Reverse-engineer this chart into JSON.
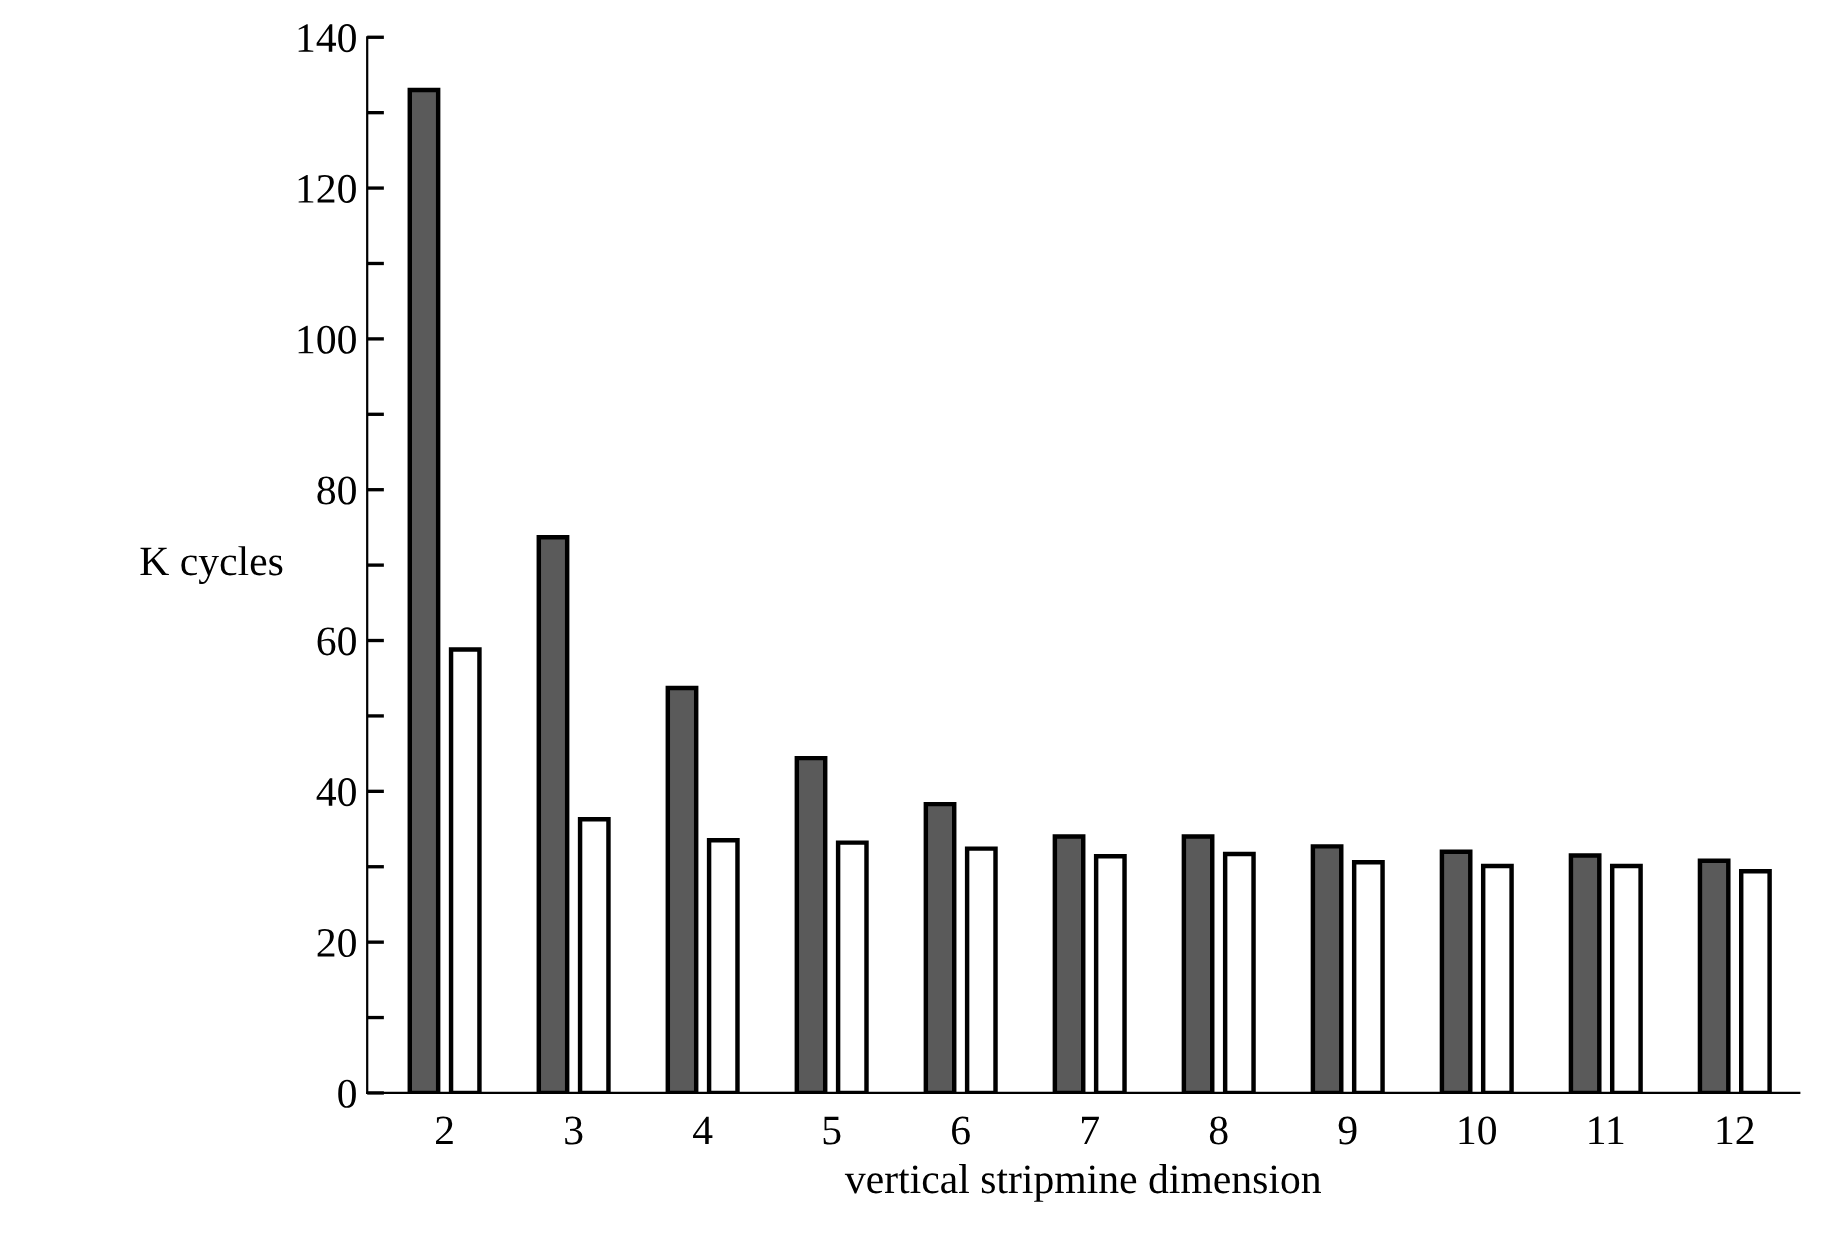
{
  "chart_data": {
    "type": "bar",
    "xlabel": "vertical stripmine dimension",
    "ylabel": "K cycles",
    "categories": [
      "2",
      "3",
      "4",
      "5",
      "6",
      "7",
      "8",
      "9",
      "10",
      "11",
      "12"
    ],
    "series": [
      {
        "color": "#5a5a5a",
        "values": [
          133,
          73.7,
          53.7,
          44.4,
          38.3,
          34.0,
          34.0,
          32.7,
          32.0,
          31.5,
          30.8
        ]
      },
      {
        "color": "#ffffff",
        "values": [
          58.8,
          36.3,
          33.5,
          33.2,
          32.4,
          31.4,
          31.7,
          30.6,
          30.1,
          30.1,
          29.4
        ]
      }
    ],
    "ylim": [
      0,
      140
    ],
    "yticks": [
      0,
      {
        "value": 10,
        "label": null
      },
      20,
      {
        "value": 30,
        "label": null
      },
      40,
      {
        "value": 50,
        "label": null
      },
      60,
      {
        "value": 70,
        "label": null
      },
      80,
      {
        "value": 90,
        "label": null
      },
      100,
      {
        "value": 110,
        "label": null
      },
      120,
      {
        "value": 130,
        "label": null
      },
      140
    ],
    "grid": false,
    "legend": false
  }
}
